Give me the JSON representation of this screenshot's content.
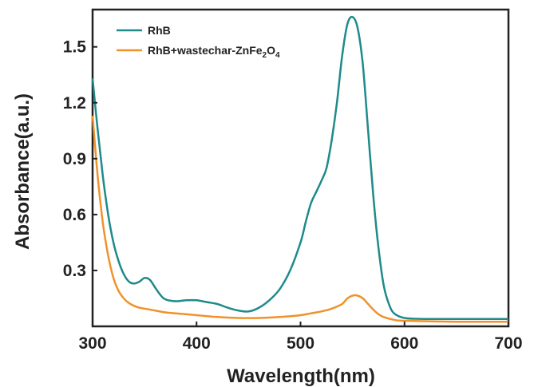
{
  "chart_data": {
    "type": "line",
    "xlabel": "Wavelength(nm)",
    "ylabel": "Absorbance(a.u.)",
    "xlim": [
      300,
      700
    ],
    "ylim": [
      0.0,
      1.7
    ],
    "xticks": [
      300,
      400,
      500,
      600,
      700
    ],
    "yticks": [
      0.3,
      0.6,
      0.9,
      1.2,
      1.5
    ],
    "grid": false,
    "legend_position": "top-left",
    "series": [
      {
        "name": "RhB",
        "name_main": "RhB",
        "color": "#1f8a8a",
        "x": [
          300,
          305,
          310,
          315,
          320,
          325,
          330,
          335,
          340,
          345,
          350,
          355,
          360,
          365,
          370,
          380,
          390,
          400,
          410,
          420,
          430,
          440,
          450,
          460,
          470,
          480,
          490,
          500,
          505,
          510,
          515,
          520,
          525,
          530,
          535,
          540,
          545,
          550,
          555,
          560,
          565,
          570,
          575,
          580,
          585,
          590,
          600,
          620,
          650,
          700
        ],
        "y": [
          1.33,
          1.05,
          0.8,
          0.6,
          0.45,
          0.35,
          0.28,
          0.24,
          0.23,
          0.24,
          0.26,
          0.25,
          0.21,
          0.17,
          0.145,
          0.135,
          0.14,
          0.14,
          0.13,
          0.12,
          0.1,
          0.085,
          0.08,
          0.1,
          0.14,
          0.2,
          0.3,
          0.45,
          0.56,
          0.66,
          0.72,
          0.78,
          0.85,
          1.0,
          1.2,
          1.45,
          1.62,
          1.66,
          1.6,
          1.4,
          1.05,
          0.7,
          0.42,
          0.22,
          0.12,
          0.07,
          0.045,
          0.04,
          0.04,
          0.04
        ]
      },
      {
        "name": "RhB+wastechar-ZnFe2O4",
        "name_main": "RhB+wastechar-ZnFe",
        "name_sub1": "2",
        "name_mid": "O",
        "name_sub2": "4",
        "color": "#f0922b",
        "x": [
          300,
          305,
          310,
          315,
          320,
          325,
          330,
          335,
          340,
          345,
          350,
          360,
          370,
          380,
          400,
          420,
          440,
          460,
          480,
          500,
          510,
          520,
          530,
          540,
          545,
          550,
          555,
          560,
          565,
          570,
          575,
          580,
          590,
          600,
          650,
          700
        ],
        "y": [
          1.13,
          0.8,
          0.55,
          0.38,
          0.26,
          0.19,
          0.15,
          0.125,
          0.11,
          0.1,
          0.095,
          0.085,
          0.075,
          0.07,
          0.06,
          0.05,
          0.045,
          0.045,
          0.05,
          0.06,
          0.07,
          0.08,
          0.095,
          0.12,
          0.15,
          0.165,
          0.165,
          0.15,
          0.12,
          0.09,
          0.065,
          0.05,
          0.035,
          0.03,
          0.025,
          0.025
        ]
      }
    ]
  }
}
